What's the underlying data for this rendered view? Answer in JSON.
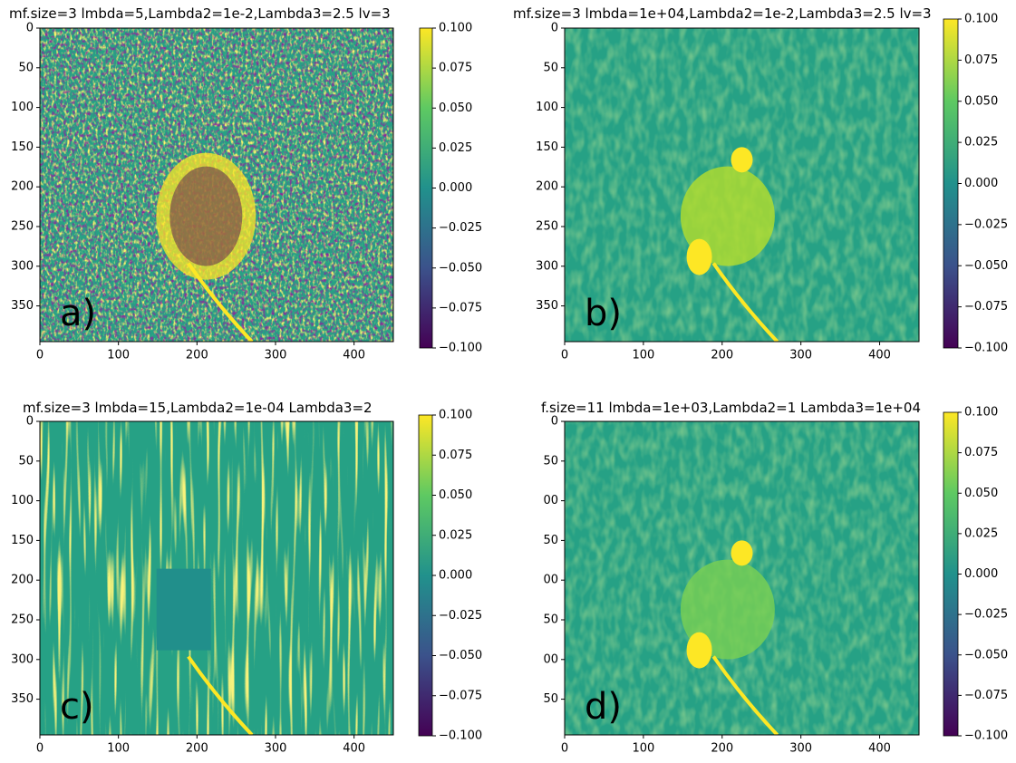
{
  "chart_data": [
    {
      "type": "image",
      "title": "mf.size=3 lmbda=5,Lambda2=1e-2,Lambda3=2.5 lv=3",
      "panel_label": "a)",
      "xlim": [
        0,
        450
      ],
      "ylim": [
        395,
        0
      ],
      "xticks": [
        0,
        100,
        200,
        300,
        400
      ],
      "yticks": [
        0,
        50,
        100,
        150,
        200,
        250,
        300,
        350
      ],
      "clim": [
        -0.1,
        0.1
      ],
      "cticks": [
        {
          "value": 0.1,
          "label": "0.100"
        },
        0.075,
        {
          "value": 0.05,
          "label": "0.050"
        },
        0.025,
        {
          "value": 0,
          "label": "0.000"
        },
        {
          "value": -0.025,
          "label": "−0.025"
        },
        {
          "value": -0.05,
          "label": "−0.050"
        },
        {
          "value": -0.075,
          "label": "−0.075"
        },
        {
          "value": -0.1,
          "label": "−0.100"
        }
      ]
    },
    {
      "type": "image",
      "title": "mf.size=3 lmbda=1e+04,Lambda2=1e-2,Lambda3=2.5 lv=3",
      "panel_label": "b)",
      "xlim": [
        0,
        450
      ],
      "ylim": [
        395,
        0
      ],
      "xticks": [
        0,
        100,
        200,
        300,
        400
      ],
      "yticks": [
        0,
        50,
        100,
        150,
        200,
        250,
        300,
        350
      ],
      "clim": [
        -0.1,
        0.1
      ],
      "cticks": [
        {
          "value": 0.1,
          "label": "0.100"
        },
        0.075,
        {
          "value": 0.05,
          "label": "0.050"
        },
        0.025,
        {
          "value": 0,
          "label": "0.000"
        },
        {
          "value": -0.025,
          "label": "−0.025"
        },
        {
          "value": -0.05,
          "label": "−0.050"
        },
        {
          "value": -0.075,
          "label": "−0.075"
        },
        {
          "value": -0.1,
          "label": "−0.100"
        }
      ]
    },
    {
      "type": "image",
      "title": "mf.size=3 lmbda=15,Lambda2=1e-04 Lambda3=2",
      "panel_label": "c)",
      "xlim": [
        0,
        450
      ],
      "ylim": [
        395,
        0
      ],
      "xticks": [
        0,
        100,
        200,
        300,
        400
      ],
      "yticks": [
        0,
        50,
        100,
        150,
        200,
        250,
        300,
        350
      ],
      "clim": [
        -0.1,
        0.1
      ],
      "cticks": [
        {
          "value": 0.1,
          "label": "0.100"
        },
        0.075,
        {
          "value": 0.05,
          "label": "0.050"
        },
        0.025,
        {
          "value": 0,
          "label": "0.000"
        },
        {
          "value": -0.025,
          "label": "−0.025"
        },
        {
          "value": -0.05,
          "label": "−0.050"
        },
        {
          "value": -0.075,
          "label": "−0.075"
        },
        {
          "value": -0.1,
          "label": "−0.100"
        }
      ]
    },
    {
      "type": "image",
      "title": "f.size=11 lmbda=1e+03,Lambda2=1 Lambda3=1e+04",
      "panel_label": "d)",
      "xlim": [
        0,
        450
      ],
      "ylim": [
        395,
        0
      ],
      "xticks": [
        0,
        100,
        200,
        300,
        400
      ],
      "yticks": [
        0,
        50,
        {
          "value": 100,
          "label": "00"
        },
        {
          "value": 150,
          "label": "50"
        },
        {
          "value": 200,
          "label": "00"
        },
        {
          "value": 250,
          "label": "50"
        },
        {
          "value": 300,
          "label": "00"
        },
        {
          "value": 350,
          "label": "50"
        }
      ],
      "clim": [
        -0.1,
        0.1
      ],
      "cticks": [
        {
          "value": 0.1,
          "label": "0.100"
        },
        0.075,
        {
          "value": 0.05,
          "label": "0.050"
        },
        0.025,
        {
          "value": 0,
          "label": "0.000"
        },
        {
          "value": -0.025,
          "label": "−0.025"
        },
        {
          "value": -0.05,
          "label": "−0.050"
        },
        {
          "value": -0.075,
          "label": "−0.075"
        },
        {
          "value": -0.1,
          "label": "−0.100"
        }
      ]
    }
  ]
}
